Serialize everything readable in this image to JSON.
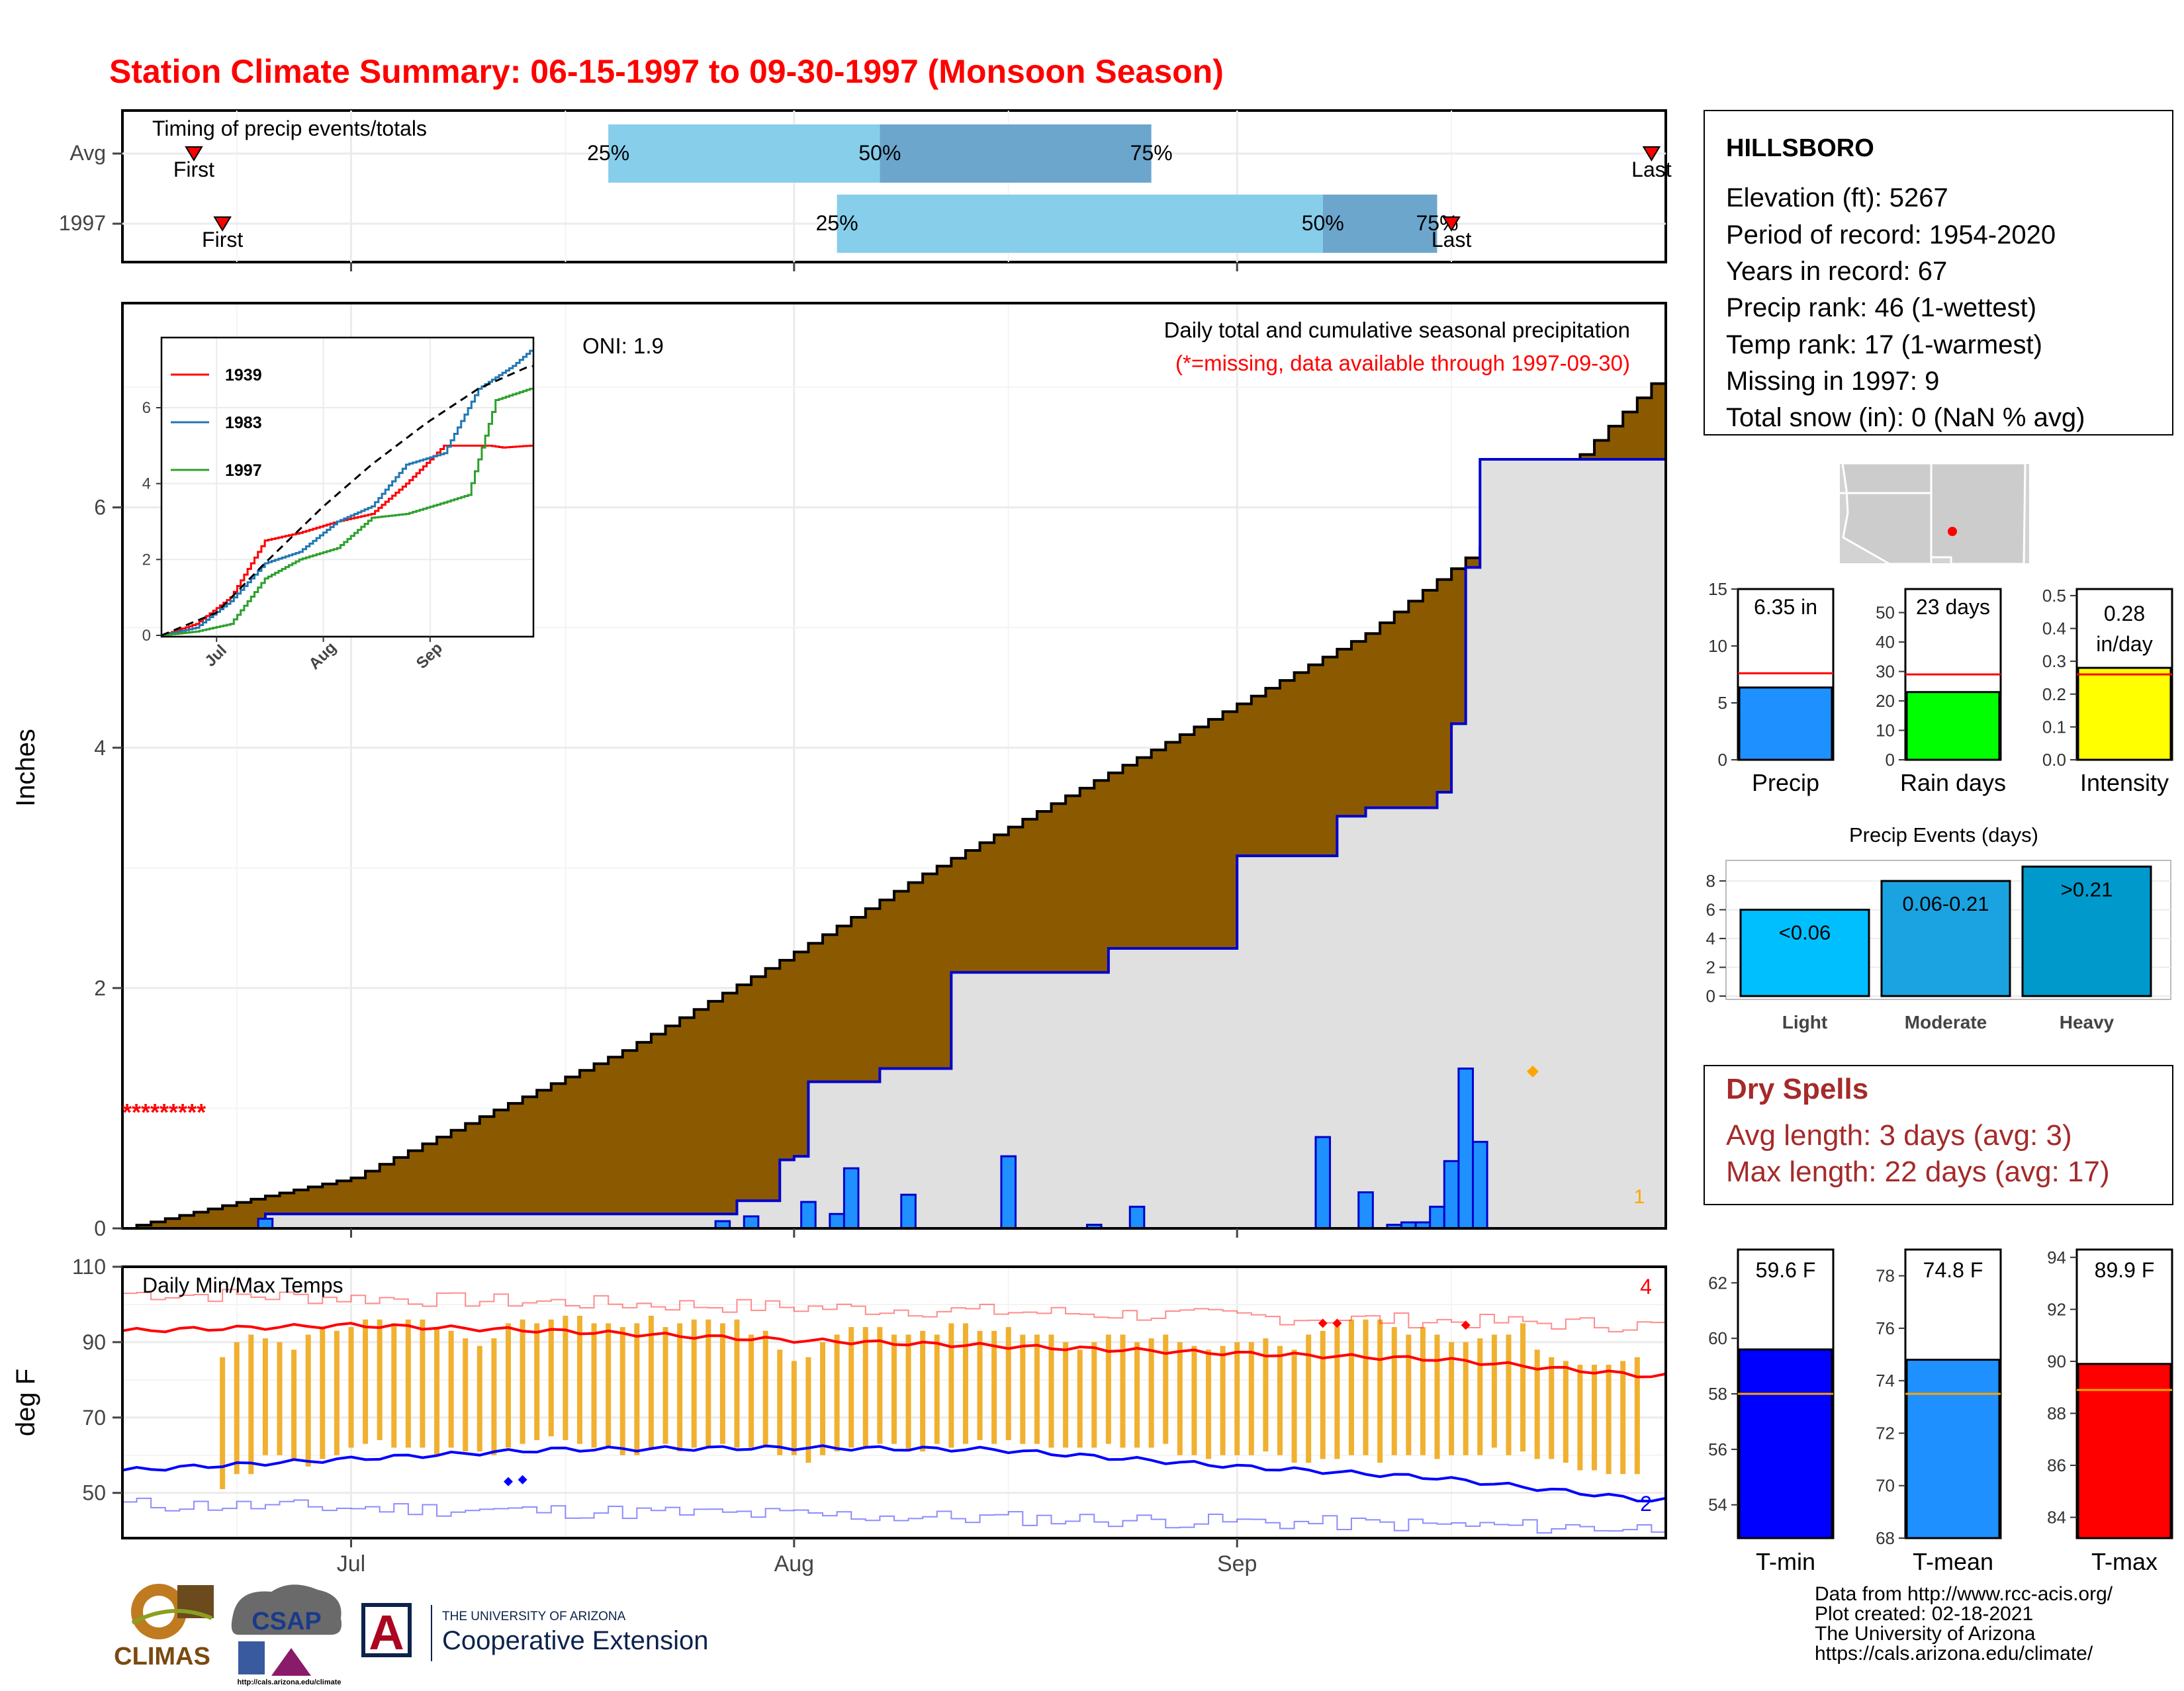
{
  "title": "Station Climate Summary: 06-15-1997 to 09-30-1997 (Monsoon Season)",
  "colors": {
    "title": "#ff0000",
    "avg_cumulative_fill": "#8b5a00",
    "obs_fill": "#e0e0e0",
    "obs_line": "#0000cd",
    "daily_bar": "#1e90ff",
    "quartile_light": "#87ceeb",
    "quartile_dark": "#6ca6cd",
    "temp_bar": "#f0b030",
    "tmax_line": "#ff0000",
    "tmin_line": "#0000ff",
    "dry_spells_text": "#a52a2a"
  },
  "timing": {
    "title": "Timing of precip events/totals",
    "rows": [
      {
        "label": "Avg",
        "first": "Jun 20",
        "q25": "Jul 19",
        "q50": "Aug 7",
        "q75": "Aug 26",
        "last": "Sep 30"
      },
      {
        "label": "1997",
        "first": "Jun 22",
        "q25": "Aug 4",
        "q50": "Sep 7",
        "q75": "Sep 15",
        "last": "Sep 16"
      }
    ],
    "first_label": "First",
    "last_label": "Last",
    "q_labels": [
      "25%",
      "50%",
      "75%"
    ]
  },
  "precip_panel": {
    "ylabel": "Inches",
    "oni": "ONI: 1.9",
    "caption": "Daily total and cumulative seasonal precipitation",
    "missing_note": "(*=missing, data available through 1997-09-30)",
    "missing_marks": "*********",
    "count_label": "1",
    "y_ticks": [
      "0",
      "2",
      "4",
      "6"
    ],
    "ylim": [
      0,
      7.7
    ]
  },
  "chart_data": [
    {
      "type": "area",
      "title": "Daily total and cumulative seasonal precipitation",
      "ylabel": "Inches",
      "ylim": [
        0,
        7.7
      ],
      "x_start": "1997-06-15",
      "x_end": "1997-09-30",
      "x_ticks": [
        "Jul",
        "Aug",
        "Sep"
      ],
      "series": [
        {
          "name": "avg_cumulative",
          "points": [
            [
              "06-15",
              0
            ],
            [
              "06-25",
              0.27
            ],
            [
              "07-01",
              0.42
            ],
            [
              "07-10",
              0.93
            ],
            [
              "07-20",
              1.48
            ],
            [
              "08-01",
              2.3
            ],
            [
              "08-10",
              2.95
            ],
            [
              "08-20",
              3.6
            ],
            [
              "08-31",
              4.3
            ],
            [
              "09-10",
              4.95
            ],
            [
              "09-20",
              5.85
            ],
            [
              "09-30",
              7.03
            ]
          ]
        },
        {
          "name": "observed_cumulative",
          "points": [
            [
              "06-15",
              0
            ],
            [
              "06-25",
              0.12
            ],
            [
              "07-27",
              0.12
            ],
            [
              "07-28",
              0.23
            ],
            [
              "07-31",
              0.57
            ],
            [
              "08-01",
              0.6
            ],
            [
              "08-02",
              1.22
            ],
            [
              "08-07",
              1.33
            ],
            [
              "08-12",
              2.13
            ],
            [
              "08-22",
              2.13
            ],
            [
              "08-23",
              2.33
            ],
            [
              "08-25",
              2.33
            ],
            [
              "09-01",
              3.1
            ],
            [
              "09-07",
              3.1
            ],
            [
              "09-08",
              3.43
            ],
            [
              "09-10",
              3.5
            ],
            [
              "09-15",
              3.63
            ],
            [
              "09-16",
              4.2
            ],
            [
              "09-17",
              5.5
            ],
            [
              "09-18",
              6.4
            ],
            [
              "09-30",
              6.4
            ]
          ]
        },
        {
          "name": "daily_precip",
          "points": [
            [
              "06-25",
              0.08
            ],
            [
              "07-27",
              0.06
            ],
            [
              "07-29",
              0.1
            ],
            [
              "08-02",
              0.22
            ],
            [
              "08-04",
              0.12
            ],
            [
              "08-05",
              0.5
            ],
            [
              "08-09",
              0.28
            ],
            [
              "08-16",
              0.6
            ],
            [
              "08-22",
              0.03
            ],
            [
              "08-25",
              0.18
            ],
            [
              "09-07",
              0.76
            ],
            [
              "09-10",
              0.3
            ],
            [
              "09-12",
              0.03
            ],
            [
              "09-13",
              0.05
            ],
            [
              "09-14",
              0.05
            ],
            [
              "09-15",
              0.18
            ],
            [
              "09-16",
              0.56
            ],
            [
              "09-17",
              1.33
            ],
            [
              "09-18",
              0.72
            ]
          ]
        }
      ]
    },
    {
      "type": "line",
      "title": "",
      "ylim": [
        0,
        7.5
      ],
      "x_ticks": [
        "Jul",
        "Aug",
        "Sep"
      ],
      "y_ticks": [
        "0",
        "2",
        "4",
        "6"
      ],
      "series": [
        {
          "name": "1939",
          "points": [
            [
              "06-15",
              0
            ],
            [
              "06-25",
              0.3
            ],
            [
              "07-05",
              1.0
            ],
            [
              "07-15",
              2.5
            ],
            [
              "07-25",
              2.7
            ],
            [
              "08-05",
              3.0
            ],
            [
              "08-15",
              3.2
            ],
            [
              "08-25",
              4.0
            ],
            [
              "09-05",
              5.0
            ],
            [
              "09-18",
              5.0
            ],
            [
              "09-22",
              4.95
            ],
            [
              "09-30",
              5.0
            ]
          ]
        },
        {
          "name": "1983",
          "points": [
            [
              "06-15",
              0
            ],
            [
              "06-25",
              0.2
            ],
            [
              "07-05",
              0.9
            ],
            [
              "07-15",
              1.9
            ],
            [
              "07-25",
              2.2
            ],
            [
              "08-05",
              3.0
            ],
            [
              "08-15",
              3.4
            ],
            [
              "08-25",
              4.5
            ],
            [
              "09-05",
              4.8
            ],
            [
              "09-15",
              6.5
            ],
            [
              "09-25",
              7.1
            ],
            [
              "09-30",
              7.5
            ]
          ]
        },
        {
          "name": "1997",
          "points": [
            [
              "06-15",
              0
            ],
            [
              "06-25",
              0.1
            ],
            [
              "07-05",
              0.3
            ],
            [
              "07-15",
              1.5
            ],
            [
              "07-25",
              2.0
            ],
            [
              "08-05",
              2.3
            ],
            [
              "08-15",
              3.1
            ],
            [
              "08-25",
              3.2
            ],
            [
              "09-05",
              3.5
            ],
            [
              "09-12",
              3.7
            ],
            [
              "09-20",
              6.2
            ],
            [
              "09-30",
              6.5
            ]
          ]
        },
        {
          "name": "Avg",
          "points": [
            [
              "06-15",
              0
            ],
            [
              "07-01",
              0.6
            ],
            [
              "07-15",
              1.9
            ],
            [
              "08-01",
              3.4
            ],
            [
              "08-15",
              4.5
            ],
            [
              "08-31",
              5.6
            ],
            [
              "09-15",
              6.5
            ],
            [
              "09-30",
              7.1
            ]
          ]
        }
      ]
    },
    {
      "type": "bar",
      "title": "Daily Min/Max Temps",
      "ylabel": "deg F",
      "ylim": [
        38,
        110
      ],
      "y_ticks": [
        "50",
        "70",
        "90",
        "110"
      ],
      "x_ticks": [
        "Jul",
        "Aug",
        "Sep"
      ],
      "count_labels": [
        "4",
        "2"
      ],
      "temp_ranges_jun22_to_sep30": [
        [
          51,
          86
        ],
        [
          55,
          90
        ],
        [
          55,
          92
        ],
        [
          60,
          91
        ],
        [
          60,
          90
        ],
        [
          59,
          88
        ],
        [
          57,
          92
        ],
        [
          59,
          94
        ],
        [
          60,
          93
        ],
        [
          62,
          94
        ],
        [
          63,
          96
        ],
        [
          64,
          96
        ],
        [
          62,
          95
        ],
        [
          62,
          96
        ],
        [
          62,
          96
        ],
        [
          60,
          94
        ],
        [
          62,
          93
        ],
        [
          61,
          91
        ],
        [
          61,
          89
        ],
        [
          60,
          91
        ],
        [
          62,
          95
        ],
        [
          63,
          96
        ],
        [
          64,
          95
        ],
        [
          65,
          96
        ],
        [
          64,
          97
        ],
        [
          63,
          97
        ],
        [
          62,
          95
        ],
        [
          62,
          95
        ],
        [
          60,
          94
        ],
        [
          60,
          95
        ],
        [
          62,
          97
        ],
        [
          63,
          94
        ],
        [
          61,
          95
        ],
        [
          62,
          96
        ],
        [
          62,
          96
        ],
        [
          63,
          95
        ],
        [
          62,
          96
        ],
        [
          62,
          92
        ],
        [
          62,
          93
        ],
        [
          60,
          88
        ],
        [
          60,
          85
        ],
        [
          58,
          86
        ],
        [
          60,
          90
        ],
        [
          61,
          92
        ],
        [
          62,
          94
        ],
        [
          62,
          94
        ],
        [
          63,
          94
        ],
        [
          63,
          92
        ],
        [
          61,
          92
        ],
        [
          61,
          93
        ],
        [
          63,
          92
        ],
        [
          62,
          95
        ],
        [
          63,
          95
        ],
        [
          64,
          93
        ],
        [
          63,
          93
        ],
        [
          64,
          94
        ],
        [
          63,
          92
        ],
        [
          63,
          92
        ],
        [
          62,
          92
        ],
        [
          62,
          90
        ],
        [
          62,
          88
        ],
        [
          62,
          90
        ],
        [
          63,
          92
        ],
        [
          62,
          92
        ],
        [
          62,
          90
        ],
        [
          62,
          91
        ],
        [
          63,
          92
        ],
        [
          60,
          90
        ],
        [
          60,
          89
        ],
        [
          59,
          88
        ],
        [
          60,
          89
        ],
        [
          60,
          90
        ],
        [
          60,
          90
        ],
        [
          61,
          91
        ],
        [
          60,
          89
        ],
        [
          58,
          88
        ],
        [
          58,
          92
        ],
        [
          59,
          93
        ],
        [
          59,
          95
        ],
        [
          60,
          96
        ],
        [
          60,
          96
        ],
        [
          58,
          96
        ],
        [
          60,
          94
        ],
        [
          60,
          92
        ],
        [
          60,
          94
        ],
        [
          59,
          92
        ],
        [
          60,
          90
        ],
        [
          60,
          90
        ],
        [
          60,
          91
        ],
        [
          62,
          92
        ],
        [
          60,
          92
        ],
        [
          61,
          95
        ],
        [
          59,
          88
        ],
        [
          59,
          86
        ],
        [
          58,
          85
        ],
        [
          56,
          84
        ],
        [
          56,
          84
        ],
        [
          55,
          84
        ],
        [
          55,
          85
        ],
        [
          55,
          86
        ]
      ],
      "series": [
        {
          "name": "tmax_avg",
          "points": [
            [
              "06-15",
              93
            ],
            [
              "07-01",
              94.5
            ],
            [
              "07-15",
              93
            ],
            [
              "08-01",
              90.5
            ],
            [
              "08-15",
              89
            ],
            [
              "09-01",
              87
            ],
            [
              "09-15",
              85.5
            ],
            [
              "09-30",
              81
            ]
          ]
        },
        {
          "name": "tmin_avg",
          "points": [
            [
              "06-15",
              56
            ],
            [
              "07-01",
              59
            ],
            [
              "07-15",
              61.5
            ],
            [
              "08-01",
              62
            ],
            [
              "08-15",
              61.5
            ],
            [
              "09-01",
              57
            ],
            [
              "09-15",
              54
            ],
            [
              "09-30",
              48
            ]
          ]
        }
      ]
    },
    {
      "type": "bar",
      "categories": [
        "Precip"
      ],
      "values": [
        6.35
      ],
      "avg": 7.6,
      "ylim": [
        0,
        15
      ],
      "label": "6.35 in"
    },
    {
      "type": "bar",
      "categories": [
        "Rain days"
      ],
      "values": [
        23
      ],
      "avg": 29,
      "ylim": [
        0,
        58
      ],
      "label": "23 days"
    },
    {
      "type": "bar",
      "categories": [
        "Intensity"
      ],
      "values": [
        0.28
      ],
      "avg": 0.26,
      "ylim": [
        0,
        0.52
      ],
      "label": "0.28 in/day"
    },
    {
      "type": "bar",
      "title": "Precip Events (days)",
      "categories": [
        "Light",
        "Moderate",
        "Heavy"
      ],
      "labels": [
        "<0.06",
        "0.06-0.21",
        ">0.21"
      ],
      "values": [
        6,
        8,
        9
      ],
      "ylim": [
        0,
        9.2
      ]
    },
    {
      "type": "bar",
      "categories": [
        "T-min"
      ],
      "values": [
        59.6
      ],
      "avg": 58,
      "ylim": [
        52.8,
        63.2
      ],
      "label": "59.6 F"
    },
    {
      "type": "bar",
      "categories": [
        "T-mean"
      ],
      "values": [
        74.8
      ],
      "avg": 73.5,
      "ylim": [
        68,
        79
      ],
      "label": "74.8 F"
    },
    {
      "type": "bar",
      "categories": [
        "T-max"
      ],
      "values": [
        89.9
      ],
      "avg": 88.9,
      "ylim": [
        83.2,
        94.3
      ],
      "label": "89.9 F"
    }
  ],
  "station": {
    "name": "HILLSBORO",
    "lines": [
      "Elevation (ft): 5267",
      "Period of record: 1954-2020",
      "Years in record: 67",
      "Precip rank: 46 (1-wettest)",
      "Temp rank: 17 (1-warmest)",
      "Missing in 1997: 9",
      "Total snow (in): 0 (NaN % avg)"
    ]
  },
  "mini_bars": [
    {
      "name": "Precip",
      "label": "6.35 in",
      "ticks": [
        "0",
        "5",
        "10",
        "15"
      ]
    },
    {
      "name": "Rain days",
      "label": "23 days",
      "ticks": [
        "0",
        "10",
        "20",
        "30",
        "40",
        "50"
      ]
    },
    {
      "name": "Intensity",
      "label_line1": "0.28",
      "label_line2": "in/day",
      "ticks": [
        "0.0",
        "0.1",
        "0.2",
        "0.3",
        "0.4",
        "0.5"
      ]
    }
  ],
  "events": {
    "title": "Precip Events (days)",
    "ticks": [
      "0",
      "2",
      "4",
      "6",
      "8"
    ]
  },
  "dry_spells": {
    "title": "Dry Spells",
    "avg": "Avg length: 3 days (avg: 3)",
    "max": "Max length: 22 days (avg: 17)"
  },
  "temp_bars": [
    {
      "name": "T-min",
      "ticks": [
        "54",
        "56",
        "58",
        "60",
        "62"
      ]
    },
    {
      "name": "T-mean",
      "ticks": [
        "68",
        "70",
        "72",
        "74",
        "76",
        "78"
      ]
    },
    {
      "name": "T-max",
      "ticks": [
        "84",
        "86",
        "88",
        "90",
        "92",
        "94"
      ]
    }
  ],
  "footer": {
    "lines": [
      "Data from http://www.rcc-acis.org/",
      "Plot created: 02-18-2021",
      "The University of Arizona",
      "https://cals.arizona.edu/climate/"
    ],
    "climas": "CLIMAS",
    "csap": "CSAP",
    "csap_url": "http://cals.arizona.edu/climate",
    "ua_small": "THE UNIVERSITY OF ARIZONA",
    "ua_big": "Cooperative Extension",
    "ua_letter": "A"
  }
}
